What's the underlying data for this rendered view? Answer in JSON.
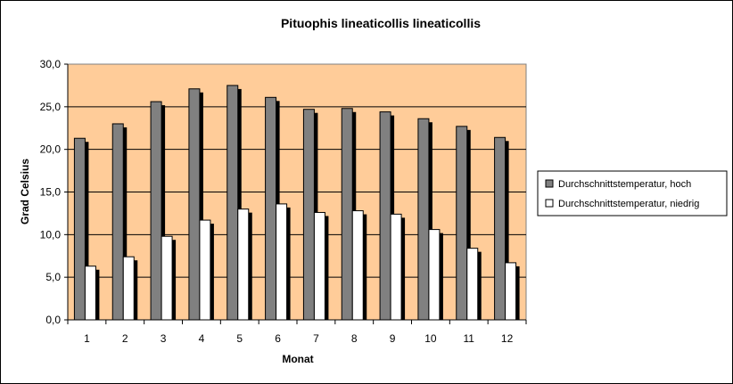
{
  "chart_data": {
    "type": "bar",
    "title": "Pituophis lineaticollis  lineaticollis",
    "xlabel": "Monat",
    "ylabel": "Grad Celsius",
    "categories": [
      "1",
      "2",
      "3",
      "4",
      "5",
      "6",
      "7",
      "8",
      "9",
      "10",
      "11",
      "12"
    ],
    "ylim": [
      0,
      30
    ],
    "yticks": [
      "0,0",
      "5,0",
      "10,0",
      "15,0",
      "20,0",
      "25,0",
      "30,0"
    ],
    "grid": true,
    "legend_position": "right",
    "plot_background": "#FFCC99",
    "series": [
      {
        "name": "Durchschnittstemperatur, hoch",
        "color": "#808080",
        "values": [
          21.3,
          23.0,
          25.6,
          27.1,
          27.5,
          26.1,
          24.7,
          24.8,
          24.4,
          23.6,
          22.7,
          21.4
        ]
      },
      {
        "name": "Durchschnittstemperatur, niedrig",
        "color": "#FFFFFF",
        "values": [
          6.3,
          7.4,
          9.8,
          11.7,
          13.0,
          13.6,
          12.6,
          12.8,
          12.4,
          10.6,
          8.4,
          6.7
        ]
      }
    ]
  }
}
